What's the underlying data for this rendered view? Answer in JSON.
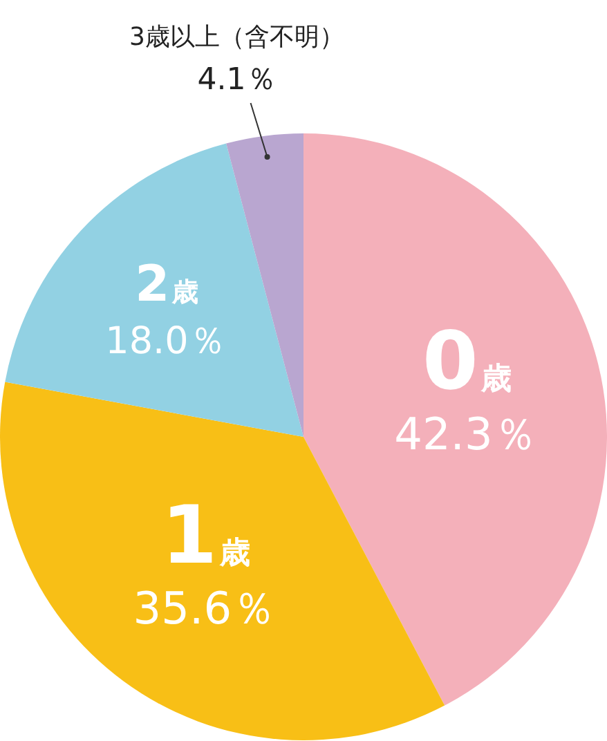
{
  "chart_data": {
    "type": "pie",
    "categories": [
      "0歳",
      "1歳",
      "2歳",
      "3歳以上（含不明）"
    ],
    "values": [
      42.3,
      35.6,
      18.0,
      4.1
    ],
    "colors": [
      "#f4b0ba",
      "#f8bf16",
      "#92d1e3",
      "#b9a6d0"
    ],
    "value_labels": [
      "42.3％",
      "35.6％",
      "18.0％",
      "4.1％"
    ],
    "legend": false
  }
}
